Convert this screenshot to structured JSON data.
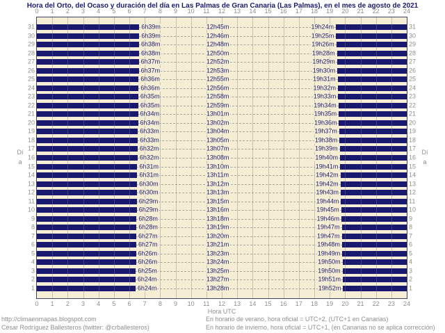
{
  "title": "Hora del Orto, del Ocaso y duración del día en Las Palmas de Gran Canaria (Las Palmas), en el mes de agosto de 2021",
  "axis": {
    "x_label": "Hora UTC",
    "x_ticks": [
      "0",
      "1",
      "2",
      "3",
      "4",
      "5",
      "6",
      "7",
      "8",
      "9",
      "10",
      "11",
      "12",
      "13",
      "14",
      "15",
      "16",
      "17",
      "18",
      "19",
      "20",
      "21",
      "22",
      "23",
      "24"
    ],
    "y_label_left": "Día",
    "y_label_right": "Día"
  },
  "chart_data": {
    "type": "bar",
    "subtype": "day-night horizontal bars (night = filled bars from 0h to sunrise and sunset to 24h, day = light gap)",
    "title": "Hora del Orto, del Ocaso y duración del día en Las Palmas de Gran Canaria (Las Palmas), en el mes de agosto de 2021",
    "xlabel": "Hora UTC",
    "ylabel": "Día",
    "xlim": [
      0,
      24
    ],
    "x_tick_step": 1,
    "grid": true,
    "row_order": "top day 31 to bottom day 1",
    "colors": {
      "night_bar": "#191970",
      "day_background": "#f5eed5",
      "grid_line": "#b9b4a8",
      "label_text": "#1a1a70",
      "axis_text": "#8e8e8e"
    },
    "rows": [
      {
        "day": 31,
        "sunrise": "6h39m",
        "daylight": "12h45m",
        "sunset": "19h24m"
      },
      {
        "day": 30,
        "sunrise": "6h39m",
        "daylight": "12h46m",
        "sunset": "19h25m"
      },
      {
        "day": 29,
        "sunrise": "6h38m",
        "daylight": "12h48m",
        "sunset": "19h26m"
      },
      {
        "day": 28,
        "sunrise": "6h38m",
        "daylight": "12h50m",
        "sunset": "19h28m"
      },
      {
        "day": 27,
        "sunrise": "6h37m",
        "daylight": "12h52m",
        "sunset": "19h29m"
      },
      {
        "day": 26,
        "sunrise": "6h37m",
        "daylight": "12h53m",
        "sunset": "19h30m"
      },
      {
        "day": 25,
        "sunrise": "6h36m",
        "daylight": "12h55m",
        "sunset": "19h31m"
      },
      {
        "day": 24,
        "sunrise": "6h36m",
        "daylight": "12h56m",
        "sunset": "19h32m"
      },
      {
        "day": 23,
        "sunrise": "6h35m",
        "daylight": "12h58m",
        "sunset": "19h33m"
      },
      {
        "day": 22,
        "sunrise": "6h35m",
        "daylight": "12h59m",
        "sunset": "19h34m"
      },
      {
        "day": 21,
        "sunrise": "6h34m",
        "daylight": "13h01m",
        "sunset": "19h35m"
      },
      {
        "day": 20,
        "sunrise": "6h34m",
        "daylight": "13h02m",
        "sunset": "19h36m"
      },
      {
        "day": 19,
        "sunrise": "6h33m",
        "daylight": "13h04m",
        "sunset": "19h37m"
      },
      {
        "day": 18,
        "sunrise": "6h33m",
        "daylight": "13h05m",
        "sunset": "19h38m"
      },
      {
        "day": 17,
        "sunrise": "6h32m",
        "daylight": "13h07m",
        "sunset": "19h39m"
      },
      {
        "day": 16,
        "sunrise": "6h32m",
        "daylight": "13h08m",
        "sunset": "19h40m"
      },
      {
        "day": 15,
        "sunrise": "6h31m",
        "daylight": "13h10m",
        "sunset": "19h41m"
      },
      {
        "day": 14,
        "sunrise": "6h31m",
        "daylight": "13h11m",
        "sunset": "19h42m"
      },
      {
        "day": 13,
        "sunrise": "6h30m",
        "daylight": "13h12m",
        "sunset": "19h42m"
      },
      {
        "day": 12,
        "sunrise": "6h30m",
        "daylight": "13h13m",
        "sunset": "19h43m"
      },
      {
        "day": 11,
        "sunrise": "6h29m",
        "daylight": "13h15m",
        "sunset": "19h44m"
      },
      {
        "day": 10,
        "sunrise": "6h29m",
        "daylight": "13h16m",
        "sunset": "19h45m"
      },
      {
        "day": 9,
        "sunrise": "6h28m",
        "daylight": "13h18m",
        "sunset": "19h46m"
      },
      {
        "day": 8,
        "sunrise": "6h28m",
        "daylight": "13h19m",
        "sunset": "19h47m"
      },
      {
        "day": 7,
        "sunrise": "6h27m",
        "daylight": "13h20m",
        "sunset": "19h47m"
      },
      {
        "day": 6,
        "sunrise": "6h27m",
        "daylight": "13h21m",
        "sunset": "19h48m"
      },
      {
        "day": 5,
        "sunrise": "6h26m",
        "daylight": "13h23m",
        "sunset": "19h49m"
      },
      {
        "day": 4,
        "sunrise": "6h26m",
        "daylight": "13h24m",
        "sunset": "19h50m"
      },
      {
        "day": 3,
        "sunrise": "6h25m",
        "daylight": "13h25m",
        "sunset": "19h50m"
      },
      {
        "day": 2,
        "sunrise": "6h24m",
        "daylight": "13h27m",
        "sunset": "19h51m"
      },
      {
        "day": 1,
        "sunrise": "6h24m",
        "daylight": "13h28m",
        "sunset": "19h52m"
      }
    ]
  },
  "footer": {
    "left_line1": "http://climaenmapas.blogspot.com",
    "left_line2": "César Rodríguez Ballesteros (twitter: @crballesteros)",
    "right_line1": "En horario de verano, hora oficial = UTC+2, (UTC+1 en Canarias)",
    "right_line2": "En horario de invierno, hora oficial = UTC+1, (en Canarias no se aplica corrección)"
  }
}
